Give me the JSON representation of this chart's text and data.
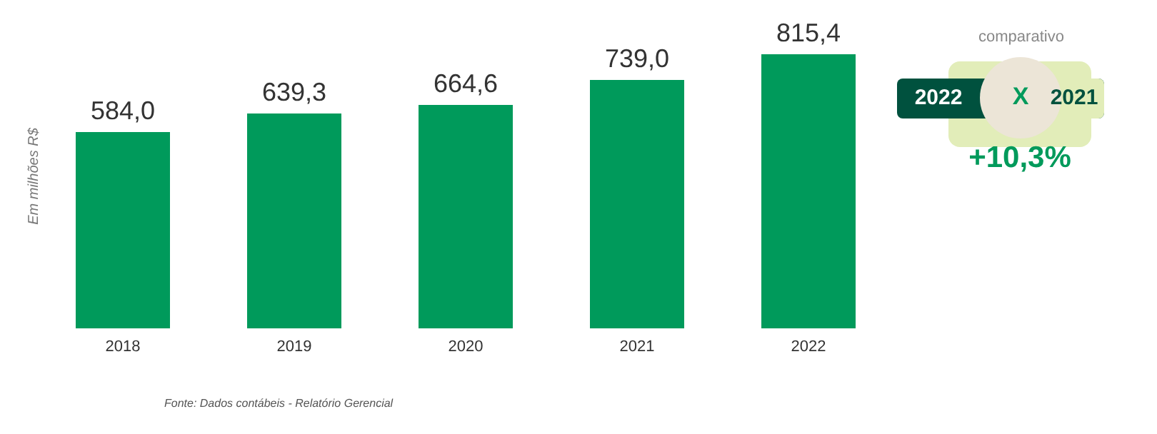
{
  "chart_data": {
    "type": "bar",
    "ylabel": "Em milhões R$",
    "categories": [
      "2018",
      "2019",
      "2020",
      "2021",
      "2022"
    ],
    "values": [
      584.0,
      639.3,
      664.6,
      739.0,
      815.4
    ],
    "value_labels": [
      "584,0",
      "639,3",
      "664,6",
      "739,0",
      "815,4"
    ],
    "color": "#009a5b",
    "grid": false,
    "legend": false,
    "annotations": [
      "Fonte: Dados contábeis - Relatório Gerencial",
      "comparativo",
      "2022",
      "X",
      "2021",
      "+10,3%"
    ]
  }
}
